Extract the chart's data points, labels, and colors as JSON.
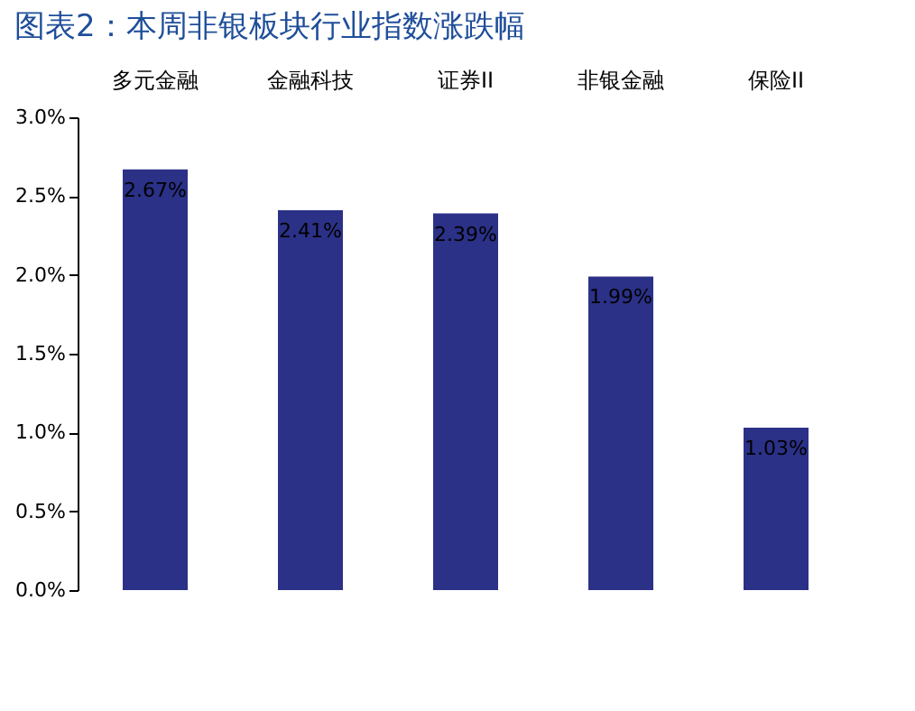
{
  "chart_data": {
    "type": "bar",
    "title": "图表2：本周非银板块行业指数涨跌幅",
    "categories": [
      "多元金融",
      "金融科技",
      "证券II",
      "非银金融",
      "保险II"
    ],
    "values": [
      2.67,
      2.41,
      2.39,
      1.99,
      1.03
    ],
    "value_labels": [
      "2.67%",
      "2.41%",
      "2.39%",
      "1.99%",
      "1.03%"
    ],
    "color": "#2b3187",
    "ylim": [
      0,
      3
    ],
    "yticks": [
      {
        "value": 0,
        "label": "0.0%"
      },
      {
        "value": 0.5,
        "label": "0.5%"
      },
      {
        "value": 1,
        "label": "1.0%"
      },
      {
        "value": 1.5,
        "label": "1.5%"
      },
      {
        "value": 2,
        "label": "2.0%"
      },
      {
        "value": 2.5,
        "label": "2.5%"
      },
      {
        "value": 3,
        "label": "3.0%"
      }
    ],
    "grid": false
  }
}
